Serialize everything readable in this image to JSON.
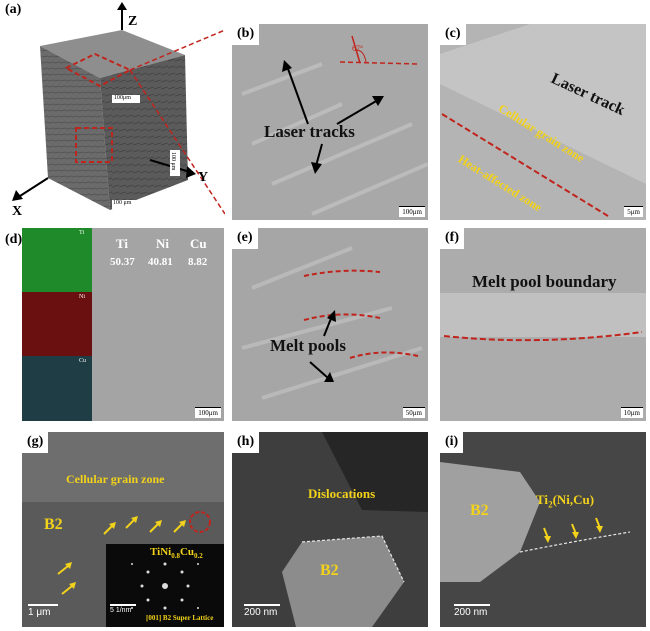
{
  "panels": {
    "a": {
      "tag": "(a)",
      "axis_z": "Z",
      "axis_y": "Y",
      "axis_x": "X",
      "scale_top": "100μm",
      "scale_side": "100 μm",
      "scale_bottom": "100 μm"
    },
    "b": {
      "tag": "(b)",
      "angle": "67°",
      "label": "Laser tracks",
      "scale": "100μm"
    },
    "c": {
      "tag": "(c)",
      "label_track": "Laser track",
      "label_cell": "Cellular grain zone",
      "label_haz": "Heat-affected zone",
      "scale": "5μm"
    },
    "d": {
      "tag": "(d)",
      "map_ti": "Ti",
      "map_ni": "Ni",
      "map_cu": "Cu",
      "elements": [
        {
          "name": "Ti",
          "value": "50.37"
        },
        {
          "name": "Ni",
          "value": "40.81"
        },
        {
          "name": "Cu",
          "value": "8.82"
        }
      ],
      "scale": "100μm"
    },
    "e": {
      "tag": "(e)",
      "label": "Melt pools",
      "scale": "50μm"
    },
    "f": {
      "tag": "(f)",
      "label": "Melt pool boundary",
      "scale": "10μm"
    },
    "g": {
      "tag": "(g)",
      "label_cell": "Cellular grain zone",
      "label_b2": "B2",
      "scale": "1 μm",
      "inset_formula": "TiNi0.8Cu0.2",
      "inset_formula_main": "TiNi",
      "inset_formula_sub1": "0.8",
      "inset_formula_mid": "Cu",
      "inset_formula_sub2": "0.2",
      "inset_scale": "5 1/nm",
      "inset_caption": "[001] B2 Super Lattice"
    },
    "h": {
      "tag": "(h)",
      "label_disl": "Dislocations",
      "label_b2": "B2",
      "scale": "200 nm"
    },
    "i": {
      "tag": "(i)",
      "label_b2": "B2",
      "formula_main": "Ti",
      "formula_sub": "2",
      "formula_rest": "(Ni,Cu)",
      "scale": "200 nm"
    }
  },
  "colors": {
    "dash": "#c0241c",
    "yellow": "#f2d21a",
    "ti_map": "#1f8a2a",
    "ni_map": "#6a1010",
    "cu_map": "#1f3d44"
  }
}
